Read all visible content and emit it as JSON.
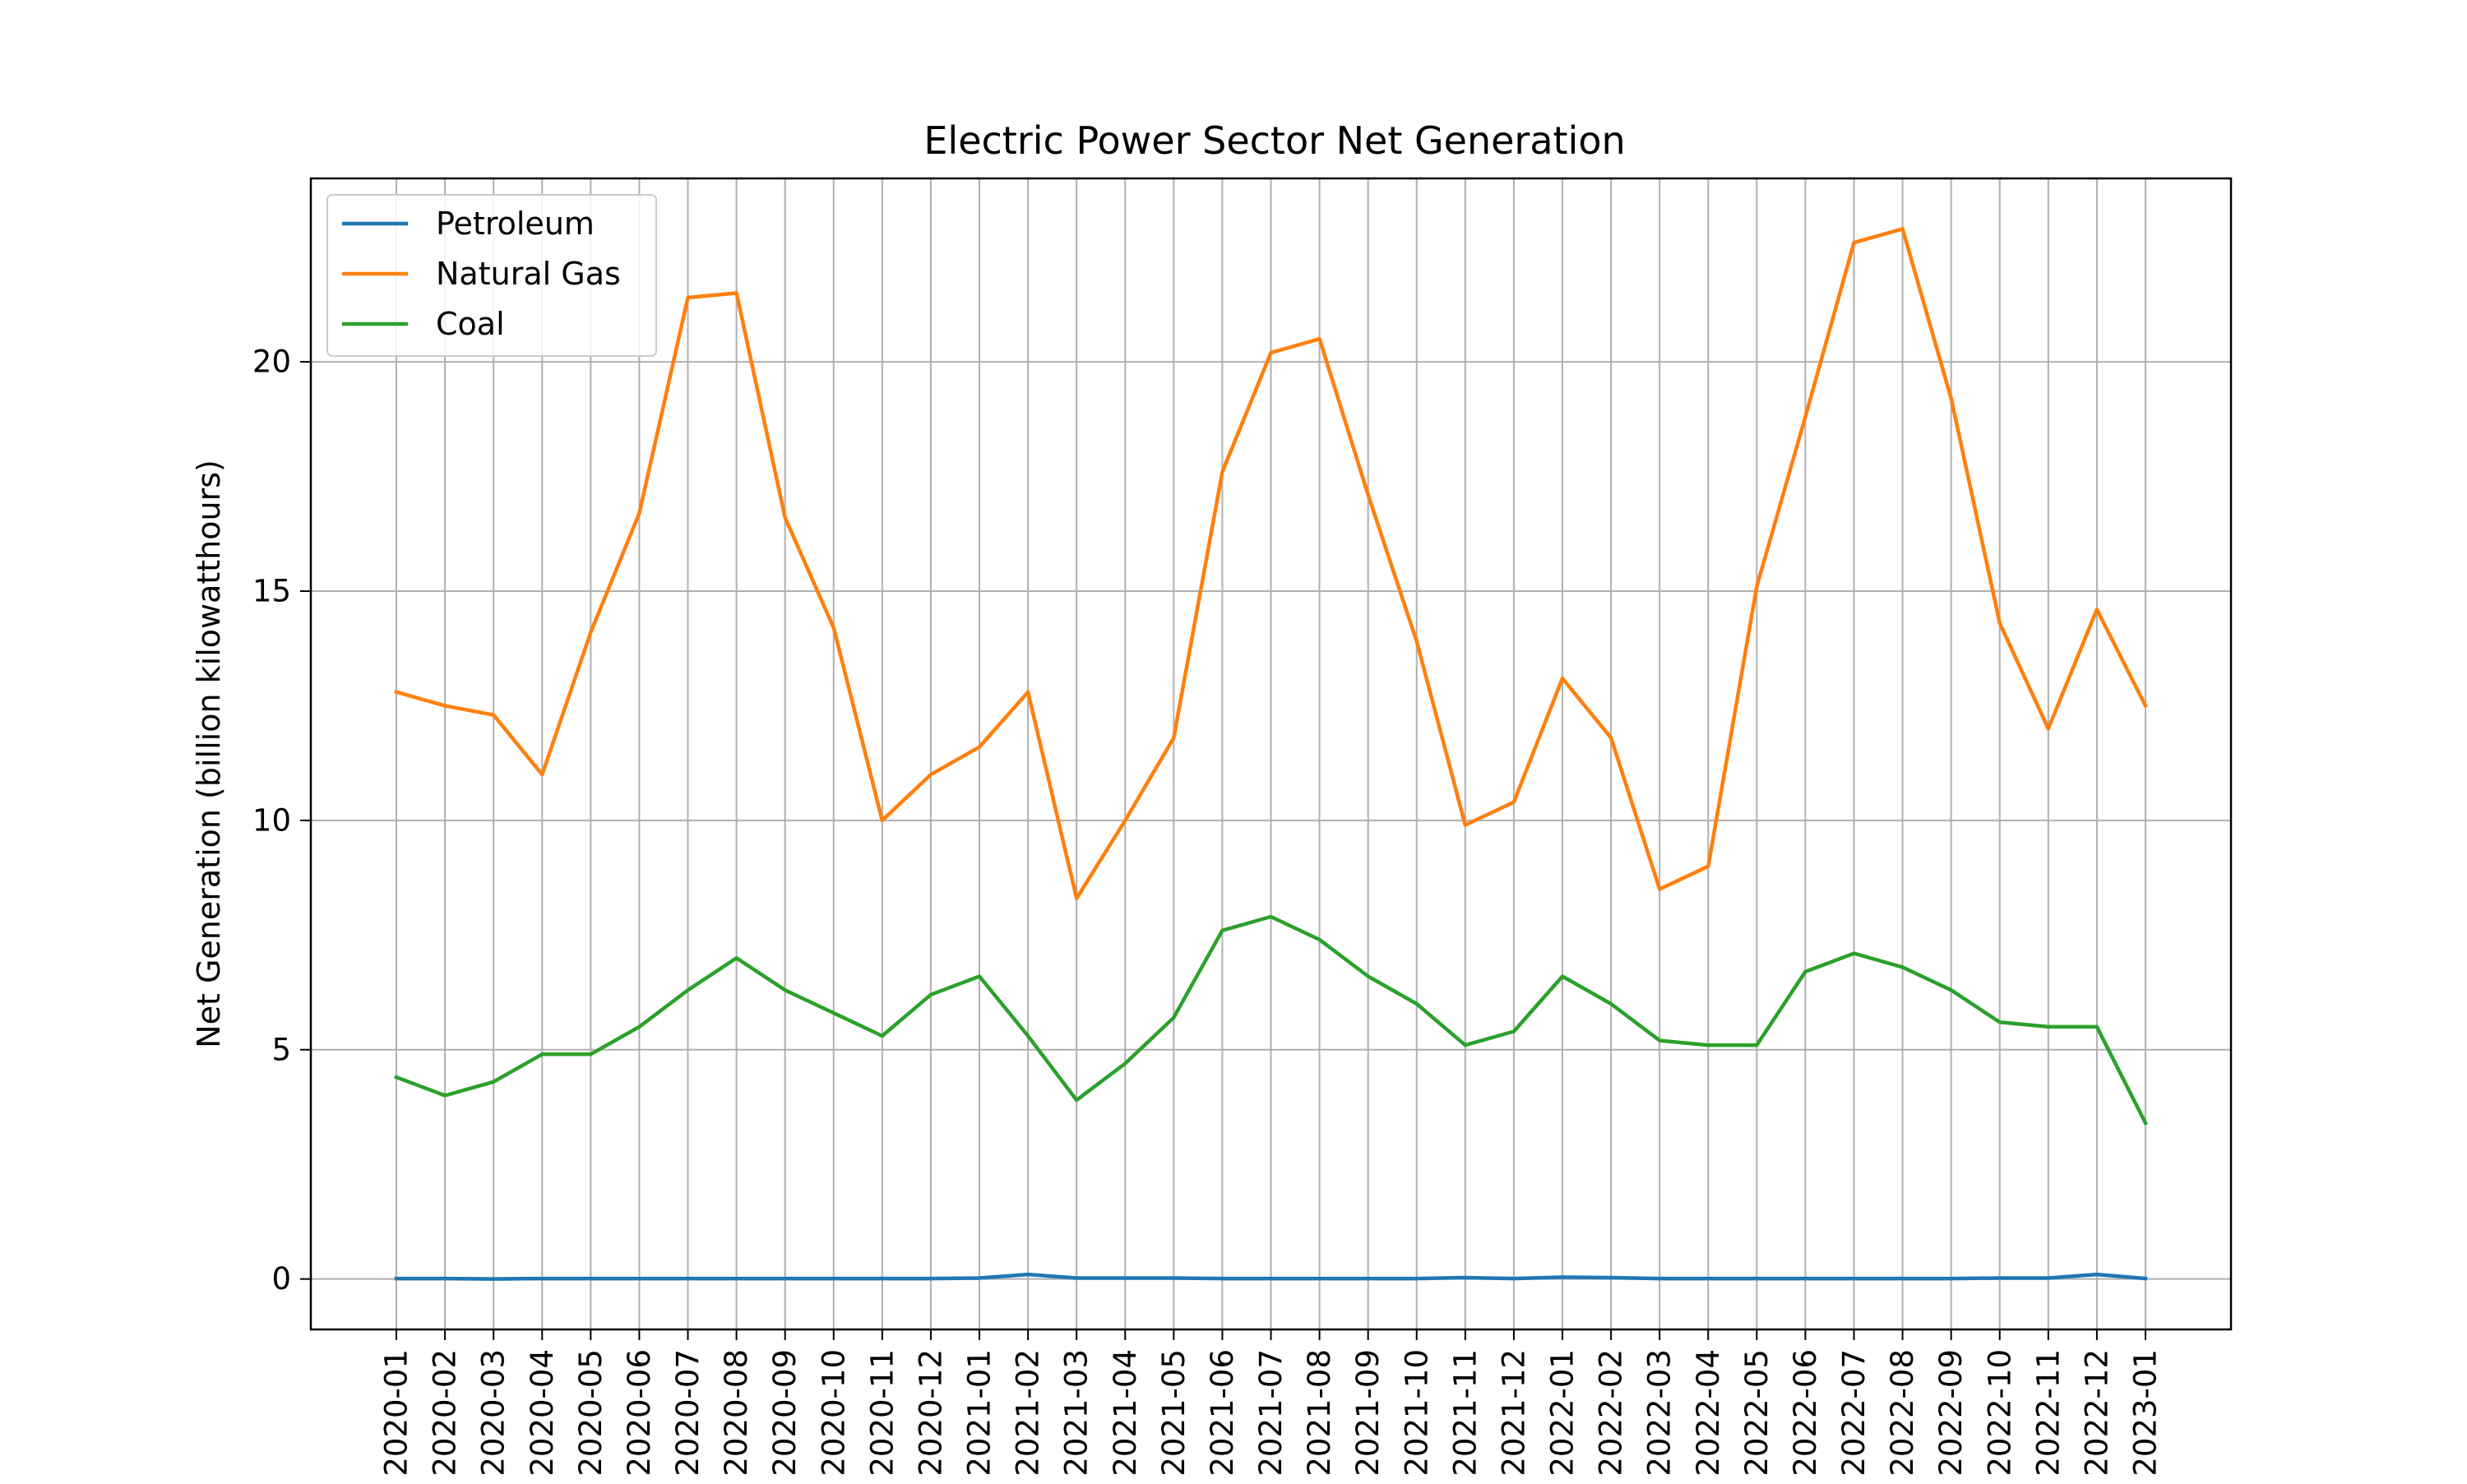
{
  "chart_data": {
    "type": "line",
    "title": "Electric Power Sector Net Generation",
    "xlabel": "",
    "ylabel": "Net Generation (billion kilowatthours)",
    "categories": [
      "2020-01",
      "2020-02",
      "2020-03",
      "2020-04",
      "2020-05",
      "2020-06",
      "2020-07",
      "2020-08",
      "2020-09",
      "2020-10",
      "2020-11",
      "2020-12",
      "2021-01",
      "2021-02",
      "2021-03",
      "2021-04",
      "2021-05",
      "2021-06",
      "2021-07",
      "2021-08",
      "2021-09",
      "2021-10",
      "2021-11",
      "2021-12",
      "2022-01",
      "2022-02",
      "2022-03",
      "2022-04",
      "2022-05",
      "2022-06",
      "2022-07",
      "2022-08",
      "2022-09",
      "2022-10",
      "2022-11",
      "2022-12",
      "2023-01"
    ],
    "ylim": [
      -1.1,
      24.0
    ],
    "yticks": [
      0,
      5,
      10,
      15,
      20
    ],
    "grid": true,
    "legend_position": "top-left",
    "series": [
      {
        "name": "Petroleum",
        "color": "#1f77b4",
        "values": [
          0.01,
          0.01,
          0.0,
          0.01,
          0.01,
          0.01,
          0.01,
          0.01,
          0.01,
          0.01,
          0.01,
          0.01,
          0.02,
          0.1,
          0.02,
          0.02,
          0.02,
          0.01,
          0.01,
          0.01,
          0.01,
          0.01,
          0.03,
          0.01,
          0.04,
          0.03,
          0.01,
          0.01,
          0.01,
          0.01,
          0.01,
          0.01,
          0.01,
          0.02,
          0.02,
          0.1,
          0.01
        ]
      },
      {
        "name": "Natural Gas",
        "color": "#ff7f0e",
        "values": [
          12.8,
          12.5,
          12.3,
          11.0,
          14.1,
          16.7,
          21.4,
          21.5,
          16.6,
          14.2,
          10.0,
          11.0,
          11.6,
          12.8,
          8.3,
          10.0,
          11.8,
          17.6,
          20.2,
          20.5,
          17.1,
          13.9,
          9.9,
          10.4,
          13.1,
          11.8,
          8.5,
          9.0,
          15.1,
          18.8,
          22.6,
          22.9,
          19.2,
          14.3,
          12.0,
          14.6,
          12.5
        ]
      },
      {
        "name": "Coal",
        "color": "#2ca02c",
        "values": [
          4.4,
          4.0,
          4.3,
          4.9,
          4.9,
          5.5,
          6.3,
          7.0,
          6.3,
          5.8,
          5.3,
          6.2,
          6.6,
          5.3,
          3.9,
          4.7,
          5.7,
          7.6,
          7.9,
          7.4,
          6.6,
          6.0,
          5.1,
          5.4,
          6.6,
          6.0,
          5.2,
          5.1,
          5.1,
          6.7,
          7.1,
          6.8,
          6.3,
          5.6,
          5.5,
          5.5,
          3.4
        ]
      }
    ]
  }
}
